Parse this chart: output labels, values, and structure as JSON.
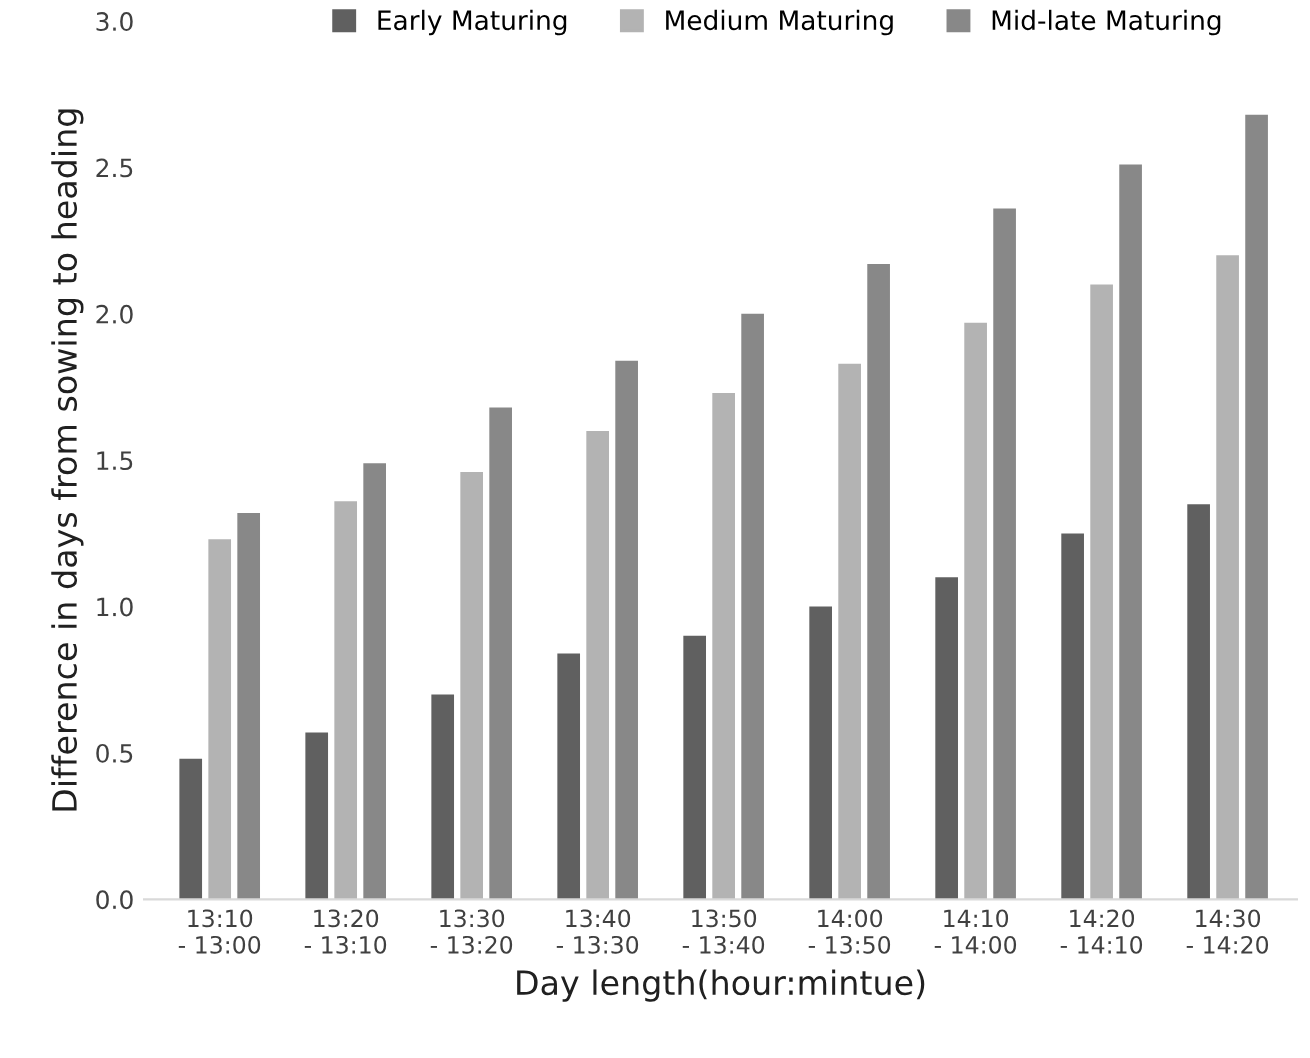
{
  "chart_data": {
    "type": "bar",
    "xlabel": "Day length(hour:mintue)",
    "ylabel": "Difference in days from sowing to heading",
    "categories": [
      "13:10\n- 13:00",
      "13:20\n- 13:10",
      "13:30\n- 13:20",
      "13:40\n- 13:30",
      "13:50\n- 13:40",
      "14:00\n- 13:50",
      "14:10\n- 14:00",
      "14:20\n- 14:10",
      "14:30\n- 14:20"
    ],
    "series": [
      {
        "name": "Early Maturing",
        "color": "#606060",
        "values": [
          0.48,
          0.57,
          0.7,
          0.84,
          0.9,
          1.0,
          1.1,
          1.25,
          1.35
        ]
      },
      {
        "name": "Medium Maturing",
        "color": "#b3b3b3",
        "values": [
          1.23,
          1.36,
          1.46,
          1.6,
          1.73,
          1.83,
          1.97,
          2.1,
          2.2
        ]
      },
      {
        "name": "Mid-late Maturing",
        "color": "#888888",
        "values": [
          1.32,
          1.49,
          1.68,
          1.84,
          2.0,
          2.17,
          2.36,
          2.51,
          2.68
        ]
      }
    ],
    "ylim": [
      0,
      3.0
    ],
    "yticks": [
      {
        "value": 0,
        "label": "0.0"
      },
      {
        "value": 0.5,
        "label": "0.5"
      },
      {
        "value": 1.0,
        "label": "1.0"
      },
      {
        "value": 1.5,
        "label": "1.5"
      },
      {
        "value": 2.0,
        "label": "2.0"
      },
      {
        "value": 2.5,
        "label": "2.5"
      },
      {
        "value": 3.0,
        "label": "3.0"
      }
    ],
    "grid": false,
    "legend": "top"
  }
}
